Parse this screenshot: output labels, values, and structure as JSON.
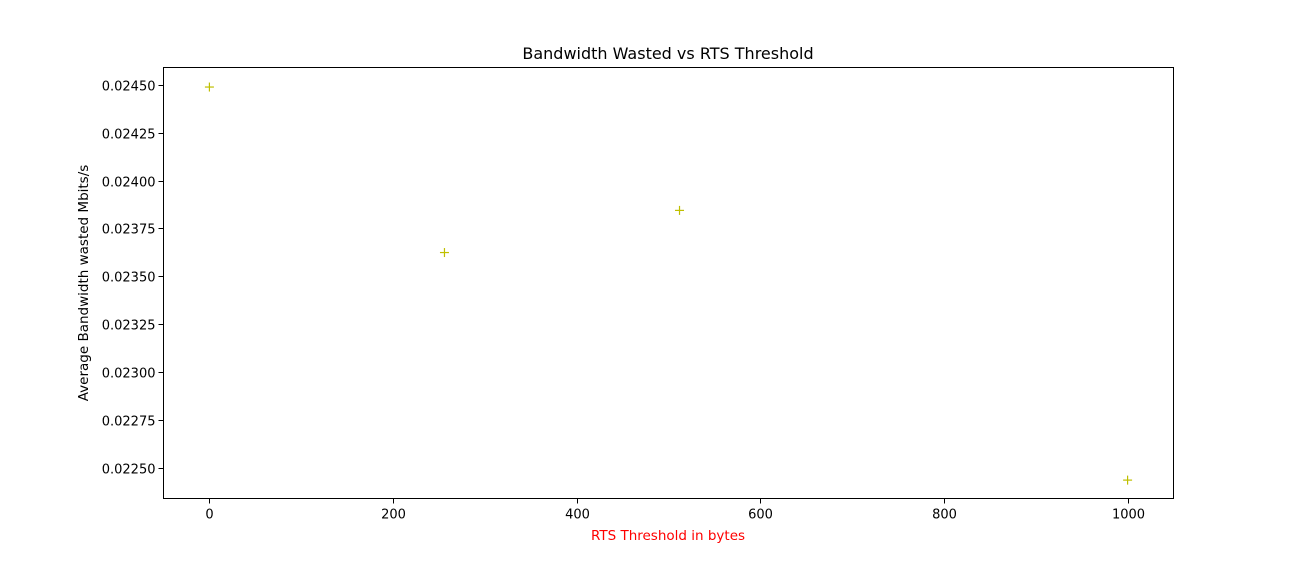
{
  "chart_data": {
    "type": "scatter",
    "title": "Bandwidth Wasted vs RTS Threshold",
    "xlabel": "RTS Threshold in bytes",
    "ylabel": "Average Bandwidth wasted Mbits/s",
    "xlim": [
      -50,
      1050
    ],
    "ylim": [
      0.02234,
      0.02459
    ],
    "x_ticks": [
      0,
      200,
      400,
      600,
      800,
      1000
    ],
    "x_tick_labels": [
      "0",
      "200",
      "400",
      "600",
      "800",
      "1000"
    ],
    "y_ticks": [
      0.0225,
      0.02275,
      0.023,
      0.02325,
      0.0235,
      0.02375,
      0.024,
      0.02425,
      0.0245
    ],
    "y_tick_labels": [
      "0.02250",
      "0.02275",
      "0.02300",
      "0.02325",
      "0.02350",
      "0.02375",
      "0.02400",
      "0.02425",
      "0.02450"
    ],
    "grid": false,
    "series": [
      {
        "marker": "+",
        "color": "#bfbf00",
        "x": [
          0,
          256,
          512,
          1000
        ],
        "y": [
          0.024488,
          0.023624,
          0.023844,
          0.022436
        ]
      }
    ],
    "colors": {
      "xlabel": "#ff0000",
      "text": "#000000",
      "axes": "#000000"
    }
  }
}
